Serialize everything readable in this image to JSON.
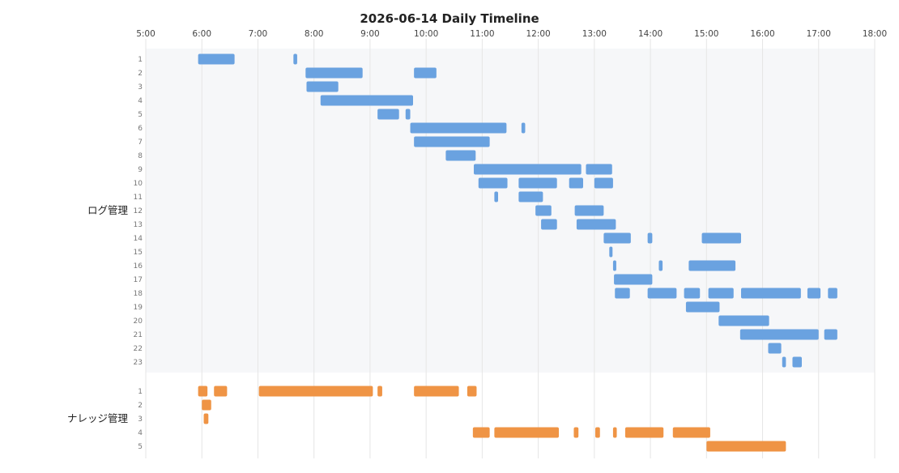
{
  "chart_data": {
    "type": "timeline",
    "title": "2026-06-14 Daily Timeline",
    "x_ticks": [
      "5:00",
      "6:00",
      "7:00",
      "8:00",
      "9:00",
      "10:00",
      "11:00",
      "12:00",
      "13:00",
      "14:00",
      "15:00",
      "16:00",
      "17:00",
      "18:00"
    ],
    "xlim": [
      "5:00",
      "18:00"
    ],
    "grid": true,
    "colors": {
      "group_1": "#6aa2e0",
      "group_2": "#ef9445",
      "panel_bg": "#f6f7f9",
      "grid": "#e6e6e6"
    },
    "groups": [
      {
        "name": "ログ管理",
        "rows": [
          {
            "label": "1",
            "bars": [
              [
                "5:56",
                "6:35"
              ],
              [
                "7:38",
                "7:42"
              ]
            ]
          },
          {
            "label": "2",
            "bars": [
              [
                "7:51",
                "8:52"
              ],
              [
                "9:47",
                "10:11"
              ]
            ]
          },
          {
            "label": "3",
            "bars": [
              [
                "7:52",
                "8:26"
              ]
            ]
          },
          {
            "label": "4",
            "bars": [
              [
                "8:07",
                "9:46"
              ]
            ]
          },
          {
            "label": "5",
            "bars": [
              [
                "9:08",
                "9:31"
              ],
              [
                "9:38",
                "9:43"
              ]
            ]
          },
          {
            "label": "6",
            "bars": [
              [
                "9:43",
                "11:26"
              ],
              [
                "11:42",
                "11:46"
              ]
            ]
          },
          {
            "label": "7",
            "bars": [
              [
                "9:47",
                "11:08"
              ]
            ]
          },
          {
            "label": "8",
            "bars": [
              [
                "10:21",
                "10:53"
              ]
            ]
          },
          {
            "label": "9",
            "bars": [
              [
                "10:51",
                "12:46"
              ],
              [
                "12:51",
                "13:19"
              ]
            ]
          },
          {
            "label": "10",
            "bars": [
              [
                "10:56",
                "11:27"
              ],
              [
                "11:39",
                "12:20"
              ],
              [
                "12:33",
                "12:48"
              ],
              [
                "13:00",
                "13:20"
              ]
            ]
          },
          {
            "label": "11",
            "bars": [
              [
                "11:13",
                "11:17"
              ],
              [
                "11:39",
                "12:05"
              ]
            ]
          },
          {
            "label": "12",
            "bars": [
              [
                "11:57",
                "12:14"
              ],
              [
                "12:39",
                "13:10"
              ]
            ]
          },
          {
            "label": "13",
            "bars": [
              [
                "12:03",
                "12:20"
              ],
              [
                "12:41",
                "13:23"
              ]
            ]
          },
          {
            "label": "14",
            "bars": [
              [
                "13:10",
                "13:39"
              ],
              [
                "13:57",
                "14:02"
              ],
              [
                "14:55",
                "15:37"
              ]
            ]
          },
          {
            "label": "15",
            "bars": [
              [
                "13:16",
                "13:19"
              ]
            ]
          },
          {
            "label": "16",
            "bars": [
              [
                "13:20",
                "13:23"
              ],
              [
                "14:09",
                "14:13"
              ],
              [
                "14:41",
                "15:31"
              ]
            ]
          },
          {
            "label": "17",
            "bars": [
              [
                "13:21",
                "14:02"
              ]
            ]
          },
          {
            "label": "18",
            "bars": [
              [
                "13:22",
                "13:38"
              ],
              [
                "13:57",
                "14:28"
              ],
              [
                "14:36",
                "14:53"
              ],
              [
                "15:02",
                "15:29"
              ],
              [
                "15:37",
                "16:41"
              ],
              [
                "16:48",
                "17:02"
              ],
              [
                "17:10",
                "17:20"
              ]
            ]
          },
          {
            "label": "19",
            "bars": [
              [
                "14:38",
                "15:14"
              ]
            ]
          },
          {
            "label": "20",
            "bars": [
              [
                "15:13",
                "16:07"
              ]
            ]
          },
          {
            "label": "21",
            "bars": [
              [
                "15:36",
                "17:00"
              ],
              [
                "17:06",
                "17:20"
              ]
            ]
          },
          {
            "label": "22",
            "bars": [
              [
                "16:06",
                "16:20"
              ]
            ]
          },
          {
            "label": "23",
            "bars": [
              [
                "16:21",
                "16:25"
              ],
              [
                "16:32",
                "16:42"
              ]
            ]
          }
        ]
      },
      {
        "name": "ナレッジ管理",
        "rows": [
          {
            "label": "1",
            "bars": [
              [
                "5:56",
                "6:06"
              ],
              [
                "6:13",
                "6:27"
              ],
              [
                "7:01",
                "9:03"
              ],
              [
                "9:08",
                "9:13"
              ],
              [
                "9:47",
                "10:35"
              ],
              [
                "10:44",
                "10:54"
              ]
            ]
          },
          {
            "label": "2",
            "bars": [
              [
                "6:00",
                "6:10"
              ]
            ]
          },
          {
            "label": "3",
            "bars": [
              [
                "6:02",
                "6:07"
              ]
            ]
          },
          {
            "label": "4",
            "bars": [
              [
                "10:50",
                "11:08"
              ],
              [
                "11:13",
                "12:22"
              ],
              [
                "12:38",
                "12:43"
              ],
              [
                "13:01",
                "13:06"
              ],
              [
                "13:20",
                "13:24"
              ],
              [
                "13:33",
                "14:14"
              ],
              [
                "14:24",
                "15:04"
              ]
            ]
          },
          {
            "label": "5",
            "bars": [
              [
                "15:00",
                "16:25"
              ]
            ]
          }
        ]
      }
    ]
  }
}
